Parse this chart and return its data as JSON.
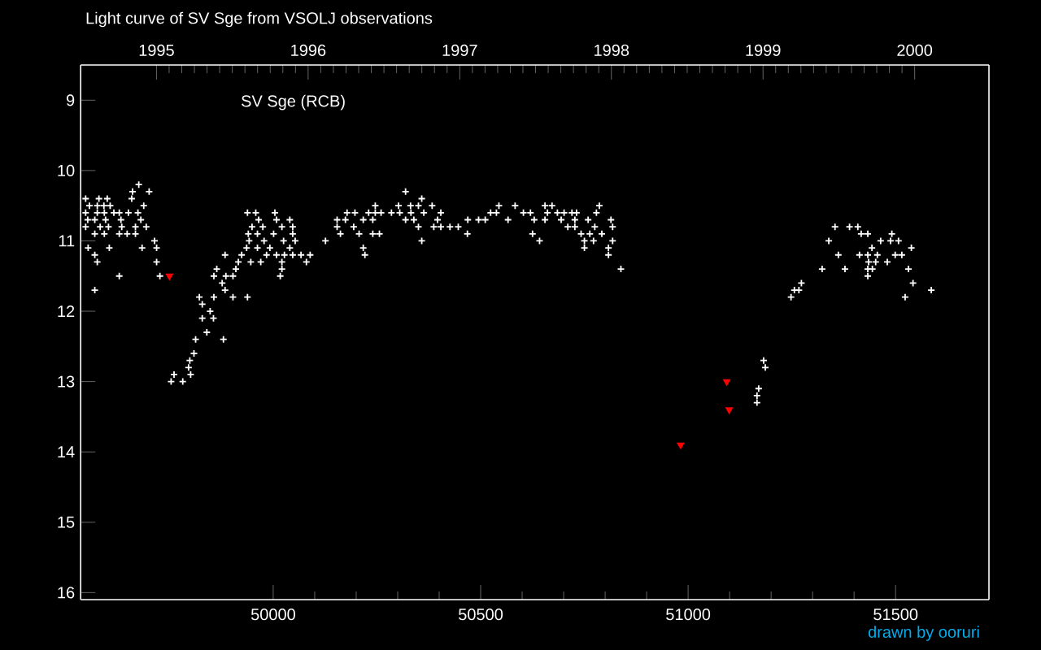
{
  "chart_data": {
    "type": "scatter",
    "title": "Light curve of SV Sge from VSOLJ observations",
    "annotations": [
      "SV Sge (RCB)",
      "drawn by ooruri"
    ],
    "xlim": [
      49536,
      51725
    ],
    "ylim": [
      16.1,
      8.5
    ],
    "xticks": [
      50000,
      50500,
      51000,
      51500
    ],
    "yticks": [
      9,
      10,
      11,
      12,
      13,
      14,
      15,
      16
    ],
    "x2lim": [
      1994.5,
      2000.49
    ],
    "x2ticks": [
      1995,
      1996,
      1997,
      1998,
      1999,
      2000
    ],
    "marker": "cross",
    "series": [
      {
        "color": "#ffffff",
        "x": [
          49548,
          49580,
          49600,
          49676,
          49661,
          49701,
          49659,
          49557,
          49576,
          49592,
          49607,
          49688,
          49548,
          49576,
          49593,
          49616,
          49629,
          49651,
          49674,
          49553,
          49570,
          49596,
          49633,
          49681,
          49548,
          49583,
          49603,
          49635,
          49668,
          49694,
          49570,
          49593,
          49629,
          49648,
          49668,
          49714,
          49554,
          49605,
          49684,
          49719,
          49570,
          49576,
          49719,
          49629,
          49727,
          49570,
          49864,
          49857,
          49886,
          49903,
          49910,
          49877,
          49884,
          49822,
          49857,
          49903,
          49938,
          49829,
          49848,
          49829,
          49856,
          49840,
          49813,
          49880,
          49809,
          49799,
          49796,
          49801,
          49761,
          49754,
          49782,
          49884,
          49916,
          49946,
          49924,
          49970,
          49984,
          50008,
          50027,
          50047,
          50067,
          50089,
          50080,
          50021,
          50017,
          50021,
          49938,
          49958,
          50004,
          49965,
          50008,
          50040,
          49949,
          49975,
          50021,
          50047,
          49940,
          49962,
          50001,
          50047,
          49942,
          49978,
          50025,
          50053,
          49936,
          49962,
          49992,
          50040,
          50178,
          50197,
          50230,
          50246,
          50260,
          50285,
          50305,
          50332,
          50363,
          50404,
          50524,
          50538,
          50603,
          50620,
          50661,
          50685,
          50701,
          50720,
          50731,
          50779,
          50154,
          50174,
          50217,
          50240,
          50319,
          50339,
          50396,
          50469,
          50495,
          50511,
          50566,
          50629,
          50655,
          50694,
          50727,
          50759,
          50814,
          50154,
          50194,
          50350,
          50387,
          50404,
          50426,
          50446,
          50710,
          50727,
          50775,
          50818,
          50162,
          50207,
          50240,
          50256,
          50468,
          50625,
          50742,
          50763,
          50792,
          50126,
          50358,
          50642,
          50750,
          50772,
          50818,
          50217,
          50750,
          50808,
          50221,
          50808,
          50838,
          50319,
          50358,
          50246,
          50302,
          50331,
          50350,
          50383,
          50544,
          50583,
          50655,
          50672,
          50786,
          51354,
          51389,
          51409,
          51417,
          51433,
          51491,
          51339,
          51464,
          51488,
          51507,
          51443,
          51538,
          51362,
          51413,
          51433,
          51456,
          51499,
          51515,
          51435,
          51452,
          51480,
          51323,
          51378,
          51433,
          51444,
          51531,
          51433,
          51542,
          51273,
          51586,
          51256,
          51267,
          51523,
          51248,
          51182,
          51186,
          51170,
          51166,
          51166
        ],
        "values": [
          10.4,
          10.4,
          10.4,
          10.2,
          10.3,
          10.3,
          10.4,
          10.5,
          10.5,
          10.5,
          10.5,
          10.5,
          10.6,
          10.6,
          10.6,
          10.6,
          10.6,
          10.6,
          10.6,
          10.7,
          10.7,
          10.7,
          10.7,
          10.7,
          10.8,
          10.8,
          10.8,
          10.8,
          10.8,
          10.8,
          10.9,
          10.9,
          10.9,
          10.9,
          10.9,
          11.0,
          11.1,
          11.1,
          11.1,
          11.1,
          11.2,
          11.3,
          11.3,
          11.5,
          11.5,
          11.7,
          11.4,
          11.5,
          11.5,
          11.5,
          11.4,
          11.6,
          11.7,
          11.8,
          11.8,
          11.8,
          11.8,
          11.9,
          12.0,
          12.1,
          12.1,
          12.3,
          12.4,
          12.4,
          12.6,
          12.7,
          12.8,
          12.9,
          12.9,
          13.0,
          13.0,
          11.2,
          11.3,
          11.3,
          11.2,
          11.3,
          11.2,
          11.2,
          11.2,
          11.2,
          11.2,
          11.2,
          11.3,
          11.3,
          11.5,
          11.4,
          10.6,
          10.6,
          10.6,
          10.7,
          10.7,
          10.7,
          10.8,
          10.8,
          10.8,
          10.8,
          10.9,
          10.9,
          10.9,
          10.9,
          11.0,
          11.0,
          11.0,
          11.0,
          11.1,
          11.1,
          11.1,
          11.1,
          10.6,
          10.6,
          10.6,
          10.6,
          10.6,
          10.6,
          10.6,
          10.6,
          10.6,
          10.6,
          10.6,
          10.6,
          10.6,
          10.6,
          10.6,
          10.6,
          10.6,
          10.6,
          10.6,
          10.6,
          10.7,
          10.7,
          10.7,
          10.7,
          10.7,
          10.7,
          10.7,
          10.7,
          10.7,
          10.7,
          10.7,
          10.7,
          10.7,
          10.7,
          10.7,
          10.7,
          10.7,
          10.8,
          10.8,
          10.8,
          10.8,
          10.8,
          10.8,
          10.8,
          10.8,
          10.8,
          10.8,
          10.8,
          10.9,
          10.9,
          10.9,
          10.9,
          10.9,
          10.9,
          10.9,
          10.9,
          10.9,
          11.0,
          11.0,
          11.0,
          11.0,
          11.0,
          11.0,
          11.1,
          11.1,
          11.1,
          11.2,
          11.2,
          11.4,
          10.3,
          10.4,
          10.5,
          10.5,
          10.5,
          10.5,
          10.5,
          10.5,
          10.5,
          10.5,
          10.5,
          10.5,
          10.8,
          10.8,
          10.8,
          10.9,
          10.9,
          10.9,
          11.0,
          11.0,
          11.0,
          11.0,
          11.1,
          11.1,
          11.2,
          11.2,
          11.2,
          11.2,
          11.2,
          11.2,
          11.3,
          11.3,
          11.3,
          11.4,
          11.4,
          11.4,
          11.4,
          11.4,
          11.5,
          11.6,
          11.6,
          11.7,
          11.7,
          11.7,
          11.8,
          11.8,
          12.7,
          12.8,
          13.1,
          13.2,
          13.3
        ]
      },
      {
        "color": "#ff0000",
        "marker": "triangle",
        "x": [
          49750,
          50982,
          51093,
          51099
        ],
        "values": [
          11.5,
          13.9,
          13.0,
          13.4
        ]
      }
    ]
  }
}
